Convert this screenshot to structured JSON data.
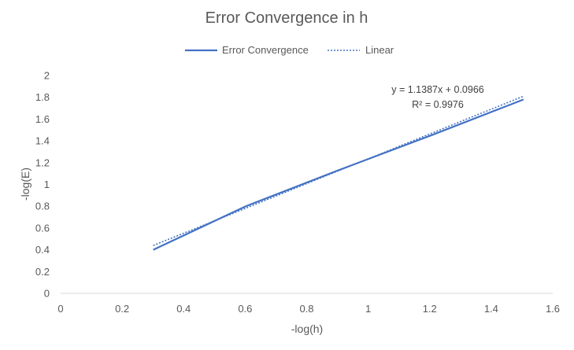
{
  "chart_data": {
    "type": "scatter",
    "title": "Error Convergence in h",
    "xlabel": "-log(h)",
    "ylabel": "-log(E)",
    "xlim": [
      0,
      1.6
    ],
    "ylim": [
      0,
      2
    ],
    "xticks": [
      0,
      0.2,
      0.4,
      0.6,
      0.8,
      1,
      1.2,
      1.4,
      1.6
    ],
    "yticks": [
      0,
      0.2,
      0.4,
      0.6,
      0.8,
      1,
      1.2,
      1.4,
      1.6,
      1.8,
      2
    ],
    "xtick_labels": [
      "0",
      "0.2",
      "0.4",
      "0.6",
      "0.8",
      "1",
      "1.2",
      "1.4",
      "1.6"
    ],
    "ytick_labels": [
      "0",
      "0.2",
      "0.4",
      "0.6",
      "0.8",
      "1",
      "1.2",
      "1.4",
      "1.6",
      "1.8",
      "2"
    ],
    "grid": false,
    "legend_position": "top",
    "series": [
      {
        "name": "Error Convergence",
        "style": "solid",
        "color": "#4472C4",
        "x": [
          0.301,
          0.602,
          0.903,
          1.204,
          1.505
        ],
        "y": [
          0.4,
          0.8,
          1.13,
          1.45,
          1.78
        ]
      }
    ],
    "trendline": {
      "name": "Linear",
      "style": "dotted",
      "color": "#4472C4",
      "slope": 1.1387,
      "intercept": 0.0966,
      "x_range": [
        0.301,
        1.505
      ]
    },
    "annotations": [
      "y = 1.1387x + 0.0966",
      "R² = 0.9976"
    ]
  }
}
